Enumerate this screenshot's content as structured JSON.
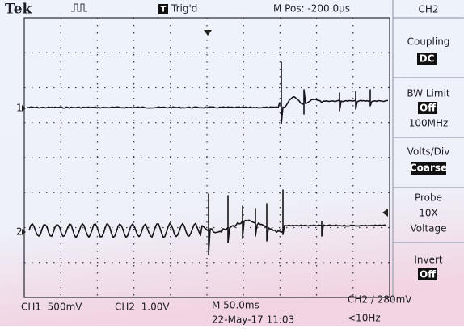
{
  "header": {
    "brand": "Tek",
    "trigger_icon": "T",
    "trigger_status": "Trig'd",
    "position": "M Pos: -200.0µs"
  },
  "menu": {
    "title": "CH2",
    "coupling": {
      "label": "Coupling",
      "value": "DC"
    },
    "bw_limit": {
      "label": "BW Limit",
      "value": "Off",
      "detail": "100MHz"
    },
    "volts_div": {
      "label": "Volts/Div",
      "value": "Coarse"
    },
    "probe": {
      "label": "Probe",
      "lines": [
        "10X",
        "Voltage"
      ]
    },
    "invert": {
      "label": "Invert",
      "value": "Off"
    }
  },
  "channels": [
    {
      "marker": "1"
    },
    {
      "marker": "2"
    }
  ],
  "footer": {
    "ch1": "CH1  500mV",
    "ch2": "CH2  1.00V",
    "timebase": "M 50.0ms",
    "trigger": "CH2 ∕ 280mV",
    "date": "22-May-17 11:03",
    "frequency": "<10Hz"
  }
}
